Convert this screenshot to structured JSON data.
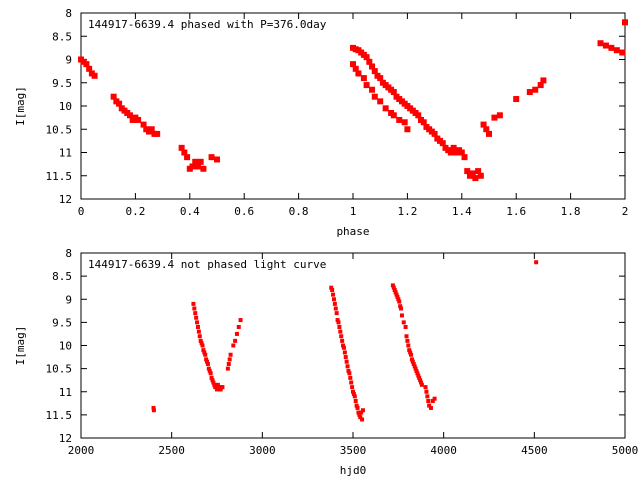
{
  "chart_data": [
    {
      "type": "scatter",
      "title": "144917-6639.4 phased with P=376.0day",
      "xlabel": "phase",
      "ylabel": "I[mag]",
      "xlim": [
        0,
        2
      ],
      "ylim": [
        12,
        8
      ],
      "y_inverted": true,
      "x_ticks": [
        "0",
        "0.2",
        "0.4",
        "0.6",
        "0.8",
        "1",
        "1.2",
        "1.4",
        "1.6",
        "1.8",
        "2"
      ],
      "x_tick_values": [
        0,
        0.2,
        0.4,
        0.6,
        0.8,
        1.0,
        1.2,
        1.4,
        1.6,
        1.8,
        2.0
      ],
      "y_ticks": [
        "8",
        "8.5",
        "9",
        "9.5",
        "10",
        "10.5",
        "11",
        "11.5",
        "12"
      ],
      "y_tick_values": [
        8,
        8.5,
        9,
        9.5,
        10,
        10.5,
        11,
        11.5,
        12
      ],
      "grid": false,
      "marker_color": "#ff0000",
      "marker_size": 3,
      "series": [
        {
          "x": [
            0.0,
            0.01,
            0.02,
            0.03,
            0.04,
            0.05,
            0.12,
            0.13,
            0.14,
            0.15,
            0.16,
            0.17,
            0.18,
            0.19,
            0.2,
            0.21,
            0.23,
            0.24,
            0.25,
            0.26,
            0.27,
            0.28,
            0.37,
            0.38,
            0.39,
            0.4,
            0.41,
            0.42,
            0.43,
            0.44,
            0.45,
            0.48,
            0.5,
            1.0,
            1.01,
            1.02,
            1.03,
            1.04,
            1.05,
            1.06,
            1.07,
            1.08,
            1.09,
            1.1,
            1.11,
            1.12,
            1.13,
            1.14,
            1.15,
            1.16,
            1.17,
            1.18,
            1.19,
            1.2,
            1.21,
            1.22,
            1.23,
            1.24,
            1.25,
            1.26,
            1.27,
            1.28,
            1.29,
            1.3,
            1.31,
            1.32,
            1.33,
            1.34,
            1.35,
            1.36,
            1.37,
            1.38,
            1.39,
            1.4,
            1.41,
            1.42,
            1.43,
            1.44,
            1.45,
            1.46,
            1.47,
            1.48,
            1.49,
            1.5,
            1.52,
            1.54,
            1.6,
            1.65,
            1.67,
            1.69,
            1.7,
            1.91,
            1.93,
            1.95,
            1.97,
            1.99,
            2.0,
            1.0,
            1.01,
            1.02,
            1.04,
            1.05,
            1.07,
            1.08,
            1.1,
            1.12,
            1.14,
            1.15,
            1.17,
            1.19,
            1.2
          ],
          "y": [
            9.0,
            9.05,
            9.1,
            9.2,
            9.3,
            9.35,
            9.8,
            9.9,
            9.95,
            10.05,
            10.1,
            10.15,
            10.2,
            10.3,
            10.25,
            10.3,
            10.4,
            10.5,
            10.55,
            10.5,
            10.6,
            10.6,
            10.9,
            11.0,
            11.1,
            11.35,
            11.3,
            11.2,
            11.3,
            11.2,
            11.35,
            11.1,
            11.15,
            8.75,
            8.78,
            8.8,
            8.85,
            8.9,
            8.95,
            9.05,
            9.15,
            9.25,
            9.35,
            9.4,
            9.5,
            9.55,
            9.6,
            9.65,
            9.7,
            9.8,
            9.85,
            9.9,
            9.95,
            10.0,
            10.05,
            10.1,
            10.15,
            10.2,
            10.3,
            10.35,
            10.45,
            10.5,
            10.55,
            10.6,
            10.7,
            10.75,
            10.8,
            10.9,
            10.95,
            11.0,
            10.9,
            11.0,
            10.95,
            11.0,
            11.1,
            11.4,
            11.5,
            11.45,
            11.55,
            11.4,
            11.5,
            10.4,
            10.5,
            10.6,
            10.25,
            10.2,
            9.85,
            9.7,
            9.65,
            9.55,
            9.45,
            8.65,
            8.7,
            8.75,
            8.8,
            8.85,
            8.2,
            9.1,
            9.2,
            9.3,
            9.4,
            9.55,
            9.65,
            9.8,
            9.9,
            10.05,
            10.15,
            10.2,
            10.3,
            10.35,
            10.5
          ]
        }
      ]
    },
    {
      "type": "scatter",
      "title": "144917-6639.4 not phased light curve",
      "xlabel": "hjd0",
      "ylabel": "I[mag]",
      "xlim": [
        2000,
        5000
      ],
      "ylim": [
        12,
        8
      ],
      "y_inverted": true,
      "x_ticks": [
        "2000",
        "2500",
        "3000",
        "3500",
        "4000",
        "4500",
        "5000"
      ],
      "x_tick_values": [
        2000,
        2500,
        3000,
        3500,
        4000,
        4500,
        5000
      ],
      "y_ticks": [
        "8",
        "8.5",
        "9",
        "9.5",
        "10",
        "10.5",
        "11",
        "11.5",
        "12"
      ],
      "y_tick_values": [
        8,
        8.5,
        9,
        9.5,
        10,
        10.5,
        11,
        11.5,
        12
      ],
      "grid": false,
      "marker_color": "#ff0000",
      "marker_size": 2,
      "series": [
        {
          "x": [
            2400,
            2402,
            2620,
            2625,
            2630,
            2635,
            2640,
            2645,
            2650,
            2655,
            2660,
            2665,
            2670,
            2675,
            2680,
            2685,
            2690,
            2695,
            2700,
            2705,
            2710,
            2715,
            2720,
            2725,
            2730,
            2735,
            2740,
            2745,
            2750,
            2755,
            2760,
            2765,
            2770,
            2775,
            2780,
            2810,
            2815,
            2820,
            2825,
            2840,
            2850,
            2860,
            2870,
            2880,
            3380,
            3385,
            3390,
            3395,
            3400,
            3405,
            3410,
            3415,
            3420,
            3425,
            3430,
            3435,
            3440,
            3445,
            3450,
            3455,
            3460,
            3465,
            3470,
            3475,
            3480,
            3485,
            3490,
            3495,
            3500,
            3505,
            3510,
            3515,
            3520,
            3525,
            3530,
            3535,
            3540,
            3545,
            3550,
            3555,
            3720,
            3725,
            3730,
            3735,
            3740,
            3745,
            3750,
            3755,
            3760,
            3765,
            3770,
            3780,
            3790,
            3795,
            3800,
            3805,
            3810,
            3815,
            3820,
            3825,
            3830,
            3835,
            3840,
            3845,
            3850,
            3855,
            3860,
            3865,
            3870,
            3875,
            3880,
            3900,
            3905,
            3910,
            3915,
            3920,
            3930,
            3940,
            3950,
            4510
          ],
          "y": [
            11.35,
            11.4,
            9.1,
            9.2,
            9.3,
            9.4,
            9.5,
            9.6,
            9.7,
            9.8,
            9.9,
            9.95,
            10.0,
            10.1,
            10.15,
            10.2,
            10.3,
            10.35,
            10.4,
            10.5,
            10.55,
            10.6,
            10.7,
            10.75,
            10.8,
            10.85,
            10.9,
            10.9,
            10.95,
            10.85,
            10.9,
            10.95,
            10.95,
            10.9,
            10.9,
            10.5,
            10.4,
            10.3,
            10.2,
            10.0,
            9.9,
            9.75,
            9.6,
            9.45,
            8.75,
            8.8,
            8.9,
            9.0,
            9.1,
            9.2,
            9.3,
            9.45,
            9.5,
            9.6,
            9.7,
            9.8,
            9.9,
            10.0,
            10.05,
            10.15,
            10.25,
            10.35,
            10.45,
            10.55,
            10.6,
            10.7,
            10.8,
            10.9,
            11.0,
            11.05,
            11.1,
            11.2,
            11.3,
            11.35,
            11.45,
            11.5,
            11.55,
            11.45,
            11.6,
            11.4,
            8.7,
            8.75,
            8.8,
            8.85,
            8.9,
            8.95,
            9.0,
            9.05,
            9.15,
            9.2,
            9.35,
            9.5,
            9.6,
            9.8,
            9.9,
            10.0,
            10.1,
            10.15,
            10.2,
            10.3,
            10.35,
            10.4,
            10.45,
            10.5,
            10.55,
            10.6,
            10.65,
            10.7,
            10.75,
            10.8,
            10.85,
            10.9,
            11.0,
            11.1,
            11.2,
            11.3,
            11.35,
            11.2,
            11.15,
            8.2
          ]
        }
      ]
    }
  ]
}
